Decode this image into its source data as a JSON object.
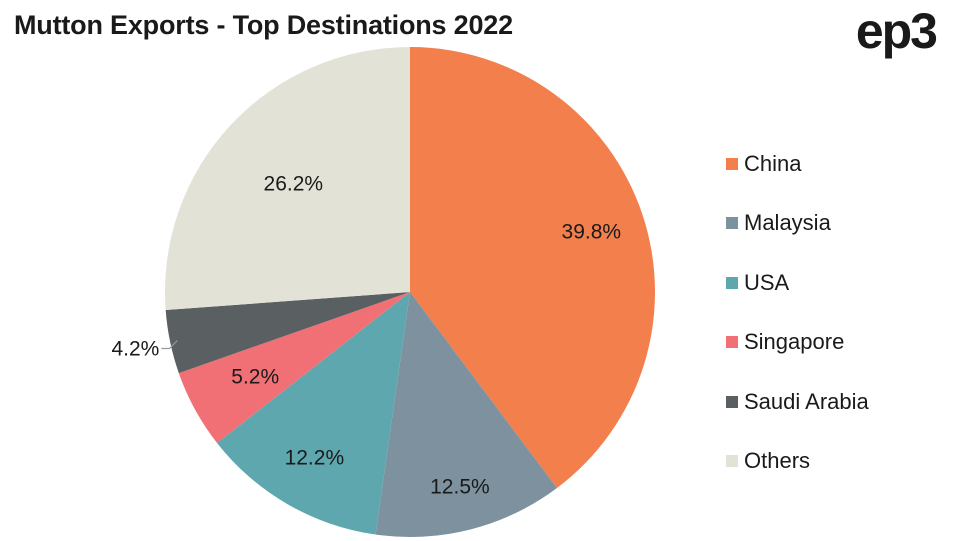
{
  "header": {
    "title": "Mutton Exports - Top Destinations 2022",
    "logo_text": "ep3"
  },
  "chart_data": {
    "type": "pie",
    "title": "Mutton Exports - Top Destinations 2022",
    "categories": [
      "China",
      "Malaysia",
      "USA",
      "Singapore",
      "Saudi Arabia",
      "Others"
    ],
    "values": [
      39.8,
      12.5,
      12.2,
      5.2,
      4.2,
      26.2
    ],
    "labels": [
      "39.8%",
      "12.5%",
      "12.2%",
      "5.2%",
      "4.2%",
      "26.2%"
    ],
    "colors": [
      "#F27F4C",
      "#7D929E",
      "#5FA7AF",
      "#F07075",
      "#5A5F62",
      "#E3E2D7"
    ],
    "legend_position": "right",
    "start_angle": "12 o'clock",
    "direction": "clockwise"
  }
}
